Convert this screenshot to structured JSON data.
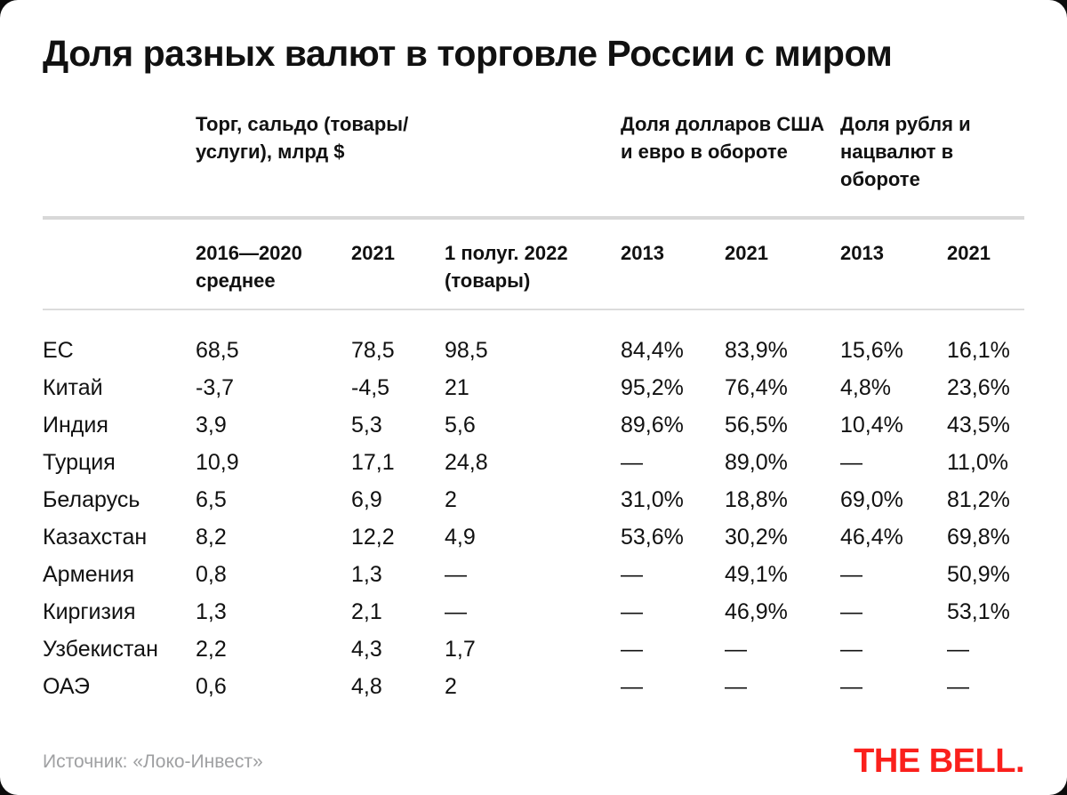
{
  "chart_data": {
    "type": "table",
    "title": "Доля разных валют в торговле России с миром",
    "column_groups": [
      {
        "line1": "Торг, сальдо (товары/",
        "line2": "услуги), млрд $",
        "spans_columns": [
          1,
          2,
          3
        ]
      },
      {
        "line1": "Доля долларов США",
        "line2": "и евро в обороте",
        "spans_columns": [
          4,
          5
        ]
      },
      {
        "line1": "Доля рубля и",
        "line2": "нацвалют в обороте",
        "spans_columns": [
          6,
          7
        ]
      }
    ],
    "columns": [
      {
        "line1": "2016—2020",
        "line2": "среднее"
      },
      {
        "line1": "2021",
        "line2": ""
      },
      {
        "line1": "1 полуг. 2022",
        "line2": "(товары)"
      },
      {
        "line1": "2013",
        "line2": ""
      },
      {
        "line1": "2021",
        "line2": ""
      },
      {
        "line1": "2013",
        "line2": ""
      },
      {
        "line1": "2021",
        "line2": ""
      }
    ],
    "rows": [
      {
        "label": "ЕС",
        "values": [
          "68,5",
          "78,5",
          "98,5",
          "84,4%",
          "83,9%",
          "15,6%",
          "16,1%"
        ]
      },
      {
        "label": "Китай",
        "values": [
          "-3,7",
          "-4,5",
          "21",
          "95,2%",
          "76,4%",
          "4,8%",
          "23,6%"
        ]
      },
      {
        "label": "Индия",
        "values": [
          "3,9",
          "5,3",
          "5,6",
          "89,6%",
          "56,5%",
          "10,4%",
          "43,5%"
        ]
      },
      {
        "label": "Турция",
        "values": [
          "10,9",
          "17,1",
          "24,8",
          "—",
          "89,0%",
          "—",
          "11,0%"
        ]
      },
      {
        "label": "Беларусь",
        "values": [
          "6,5",
          "6,9",
          "2",
          "31,0%",
          "18,8%",
          "69,0%",
          "81,2%"
        ]
      },
      {
        "label": "Казахстан",
        "values": [
          "8,2",
          "12,2",
          "4,9",
          "53,6%",
          "30,2%",
          "46,4%",
          "69,8%"
        ]
      },
      {
        "label": "Армения",
        "values": [
          "0,8",
          "1,3",
          "—",
          "—",
          "49,1%",
          "—",
          "50,9%"
        ]
      },
      {
        "label": "Киргизия",
        "values": [
          "1,3",
          "2,1",
          "—",
          "—",
          "46,9%",
          "—",
          "53,1%"
        ]
      },
      {
        "label": "Узбекистан",
        "values": [
          "2,2",
          "4,3",
          "1,7",
          "—",
          "—",
          "—",
          "—"
        ]
      },
      {
        "label": "ОАЭ",
        "values": [
          "0,6",
          "4,8",
          "2",
          "—",
          "—",
          "—",
          "—"
        ]
      }
    ]
  },
  "footer": {
    "source": "Источник: «Локо-Инвест»",
    "logo": "THE BELL."
  },
  "colors": {
    "page_bg": "#0c0c0c",
    "card_bg": "#ffffff",
    "text": "#111111",
    "divider_strong": "#d8d8d8",
    "divider_light": "#dcdcdc",
    "source_gray": "#9fa0a2",
    "logo_red": "#fa201c"
  }
}
